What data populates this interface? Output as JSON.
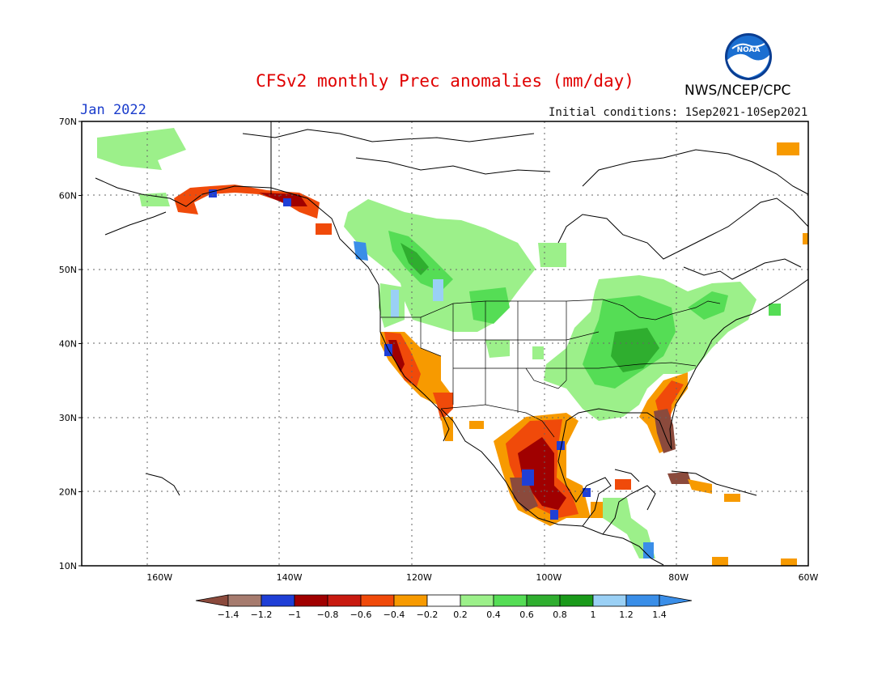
{
  "title": "CFSv2 monthly Prec anomalies (mm/day)",
  "month": "Jan 2022",
  "initial_conditions": "Initial conditions: 1Sep2021-10Sep2021",
  "agency": "NWS/NCEP/CPC",
  "logo_text": "NOAA",
  "map": {
    "lat_labels": [
      "70N",
      "60N",
      "50N",
      "40N",
      "30N",
      "20N",
      "10N"
    ],
    "lon_labels": [
      "160W",
      "140W",
      "120W",
      "100W",
      "80W",
      "60W"
    ],
    "lon_range": [
      -172,
      -60
    ],
    "lat_range": [
      10,
      70
    ],
    "grid_lines": "dotted"
  },
  "colorbar": {
    "tick_labels": [
      "-1.4",
      "-1.2",
      "-1",
      "-0.8",
      "-0.6",
      "-0.4",
      "-0.2",
      "0.2",
      "0.4",
      "0.6",
      "0.8",
      "1",
      "1.2",
      "1.4"
    ],
    "colors": [
      "#8b4a3c",
      "#a67b6e",
      "#1f3fd6",
      "#a00000",
      "#c81a10",
      "#f04a0a",
      "#f79a00",
      "#ffffff",
      "#9cf08a",
      "#55dd55",
      "#2fae2f",
      "#1a9a1a",
      "#9ad0f5",
      "#3a8ee8",
      "#3a8ee8"
    ]
  }
}
